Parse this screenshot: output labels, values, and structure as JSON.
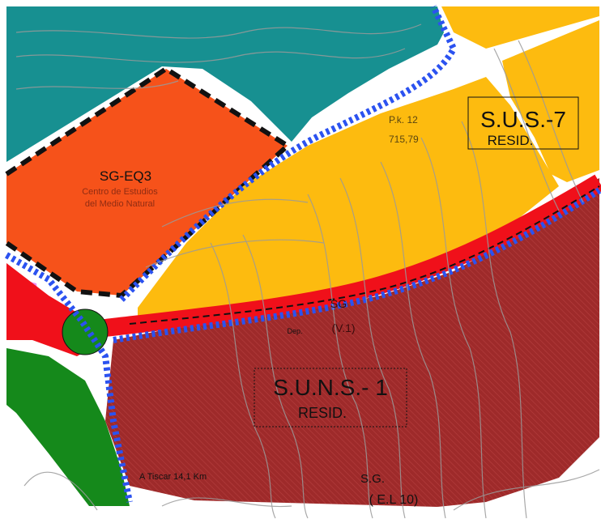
{
  "zones": {
    "sus7": {
      "code": "S.U.S.-7",
      "use": "RESID."
    },
    "suns1": {
      "code": "S.U.N.S.- 1",
      "use": "RESID."
    },
    "sgeq3": {
      "code": "SG-EQ3",
      "subtitle_1": "Centro de Estudios",
      "subtitle_2": "del Medio Natural"
    }
  },
  "road_labels": {
    "sg_v": "SG",
    "v_code": "(V.1)",
    "sg_el": "S.G.",
    "el_code": "( E.L 10)",
    "dep": "Dep.",
    "tiscar": "A Tiscar  14,1  Km",
    "pk_1": "P.k. 12",
    "pk_2": "715,79"
  },
  "colors": {
    "teal": "#179091",
    "orange": "#f6521a",
    "yellow": "#fdbb0f",
    "maroon": "#9e2a2a",
    "green": "#15891b",
    "pink": "#ee8ef0",
    "red": "#f0101a",
    "blue_border": "#2b52f0"
  }
}
